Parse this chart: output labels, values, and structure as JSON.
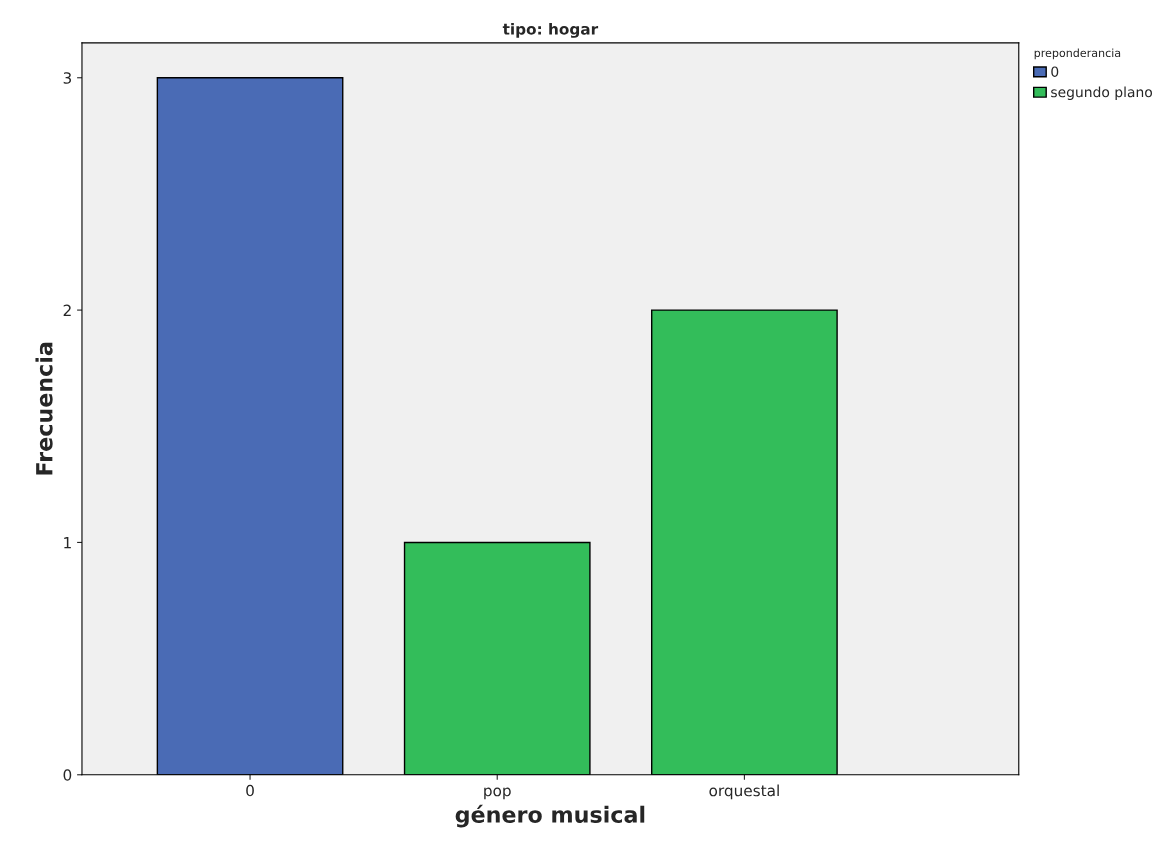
{
  "chart_data": {
    "type": "bar",
    "title": "tipo: hogar",
    "xlabel": "género musical",
    "ylabel": "Frecuencia",
    "legend_title": "preponderancia",
    "categories": [
      "0",
      "pop",
      "orquestal"
    ],
    "series": [
      {
        "name": "0",
        "color": "#4a6bb5",
        "values": [
          3,
          null,
          null
        ]
      },
      {
        "name": "segundo plano",
        "color": "#33bd5a",
        "values": [
          null,
          1,
          2
        ]
      }
    ],
    "ylim": [
      0,
      3.15
    ],
    "yticks": [
      0,
      1,
      2,
      3
    ],
    "grid": false,
    "legend": "top right"
  }
}
